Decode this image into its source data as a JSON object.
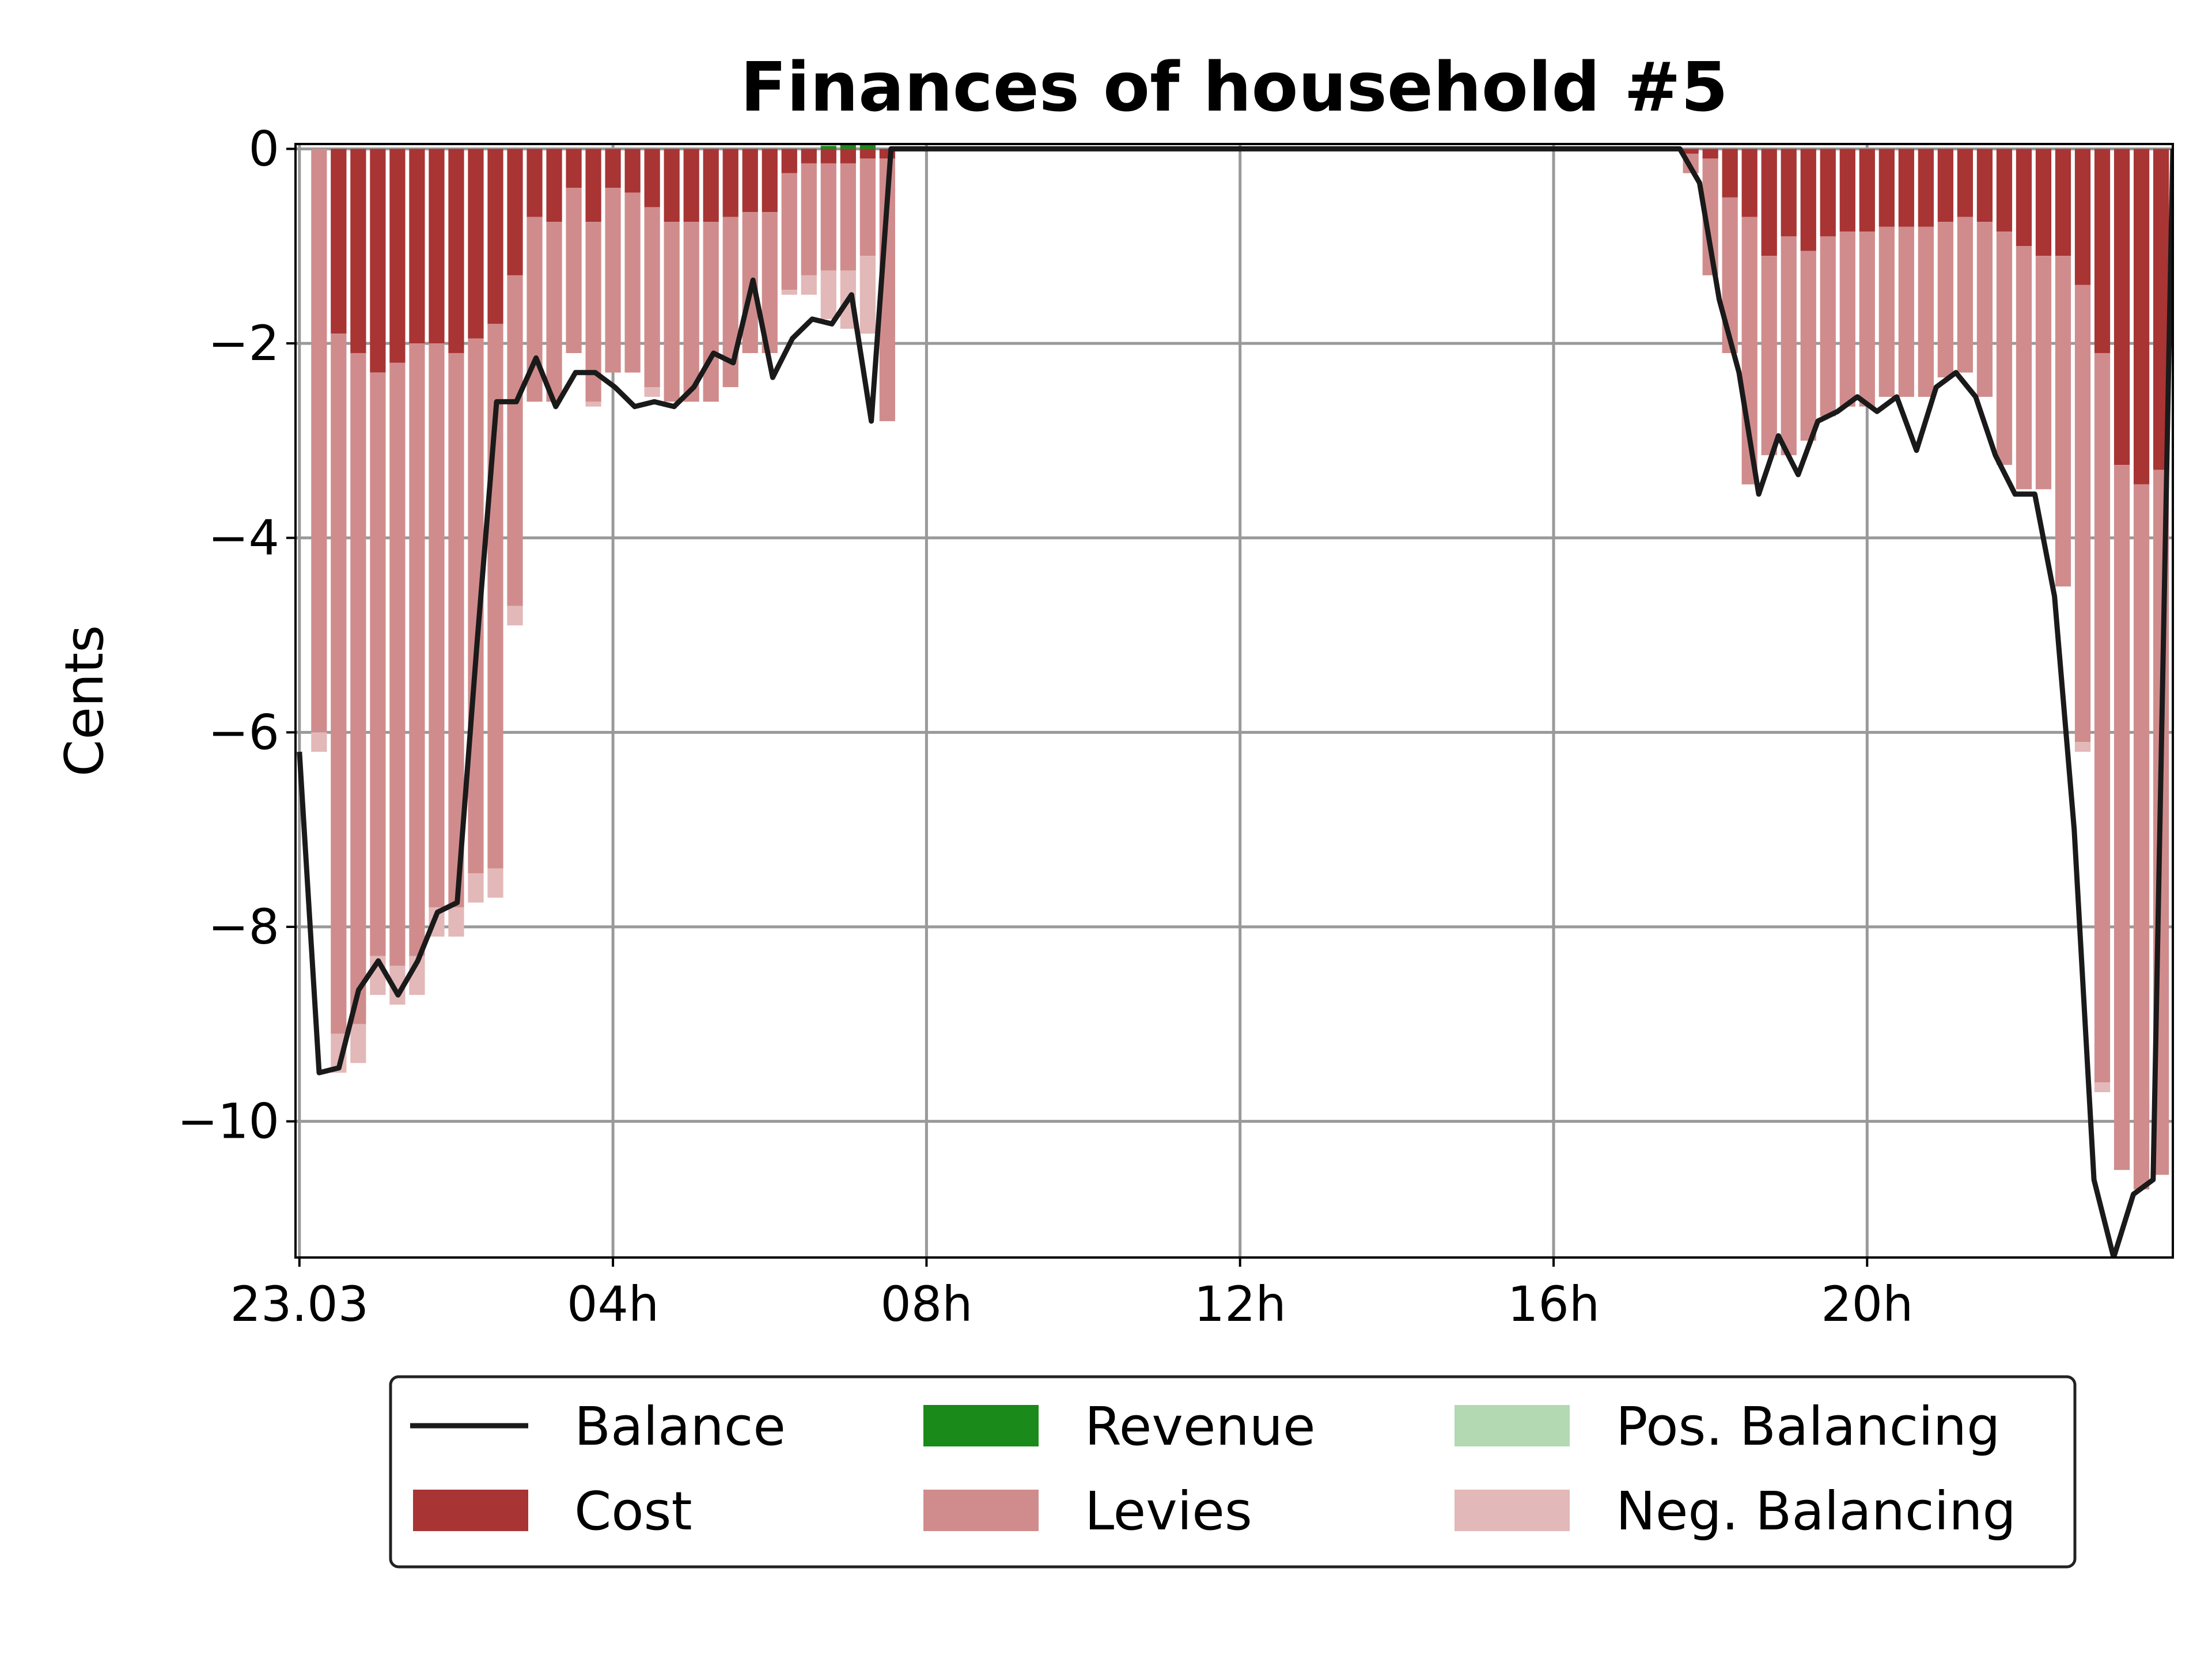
{
  "chart_data": {
    "type": "bar",
    "title": "Finances of household #5",
    "xlabel": "",
    "ylabel": "Cents",
    "ylim": [
      -11.4,
      0.05
    ],
    "yticks": [
      0,
      -2,
      -4,
      -6,
      -8,
      -10
    ],
    "ytick_labels": [
      "0",
      "−2",
      "−4",
      "−6",
      "−8",
      "−10"
    ],
    "xlim_hours": [
      -0.05,
      23.9
    ],
    "xticks_hours": [
      0,
      4,
      8,
      12,
      16,
      20
    ],
    "xtick_labels": [
      "23.03",
      "04h",
      "08h",
      "12h",
      "16h",
      "20h"
    ],
    "grid": true,
    "legend_position": "below",
    "colors": {
      "balance": "#1a1a1a",
      "revenue": "#1a8a1a",
      "pos_balancing": "#b3d9b3",
      "cost": "#a83434",
      "levies": "#d08c8c",
      "neg_balancing": "#e3b8b8",
      "grid": "#999999"
    },
    "legend": [
      {
        "key": "balance",
        "label": "Balance",
        "kind": "line"
      },
      {
        "key": "cost",
        "label": "Cost",
        "kind": "bar"
      },
      {
        "key": "revenue",
        "label": "Revenue",
        "kind": "bar"
      },
      {
        "key": "levies",
        "label": "Levies",
        "kind": "bar"
      },
      {
        "key": "pos_balancing",
        "label": "Pos. Balancing",
        "kind": "bar"
      },
      {
        "key": "neg_balancing",
        "label": "Neg. Balancing",
        "kind": "bar"
      }
    ],
    "interval_hours": 0.25,
    "cost": [
      0,
      -0.0,
      -1.9,
      -2.1,
      -2.3,
      -2.2,
      -2.0,
      -2.0,
      -2.1,
      -1.95,
      -1.8,
      -1.3,
      -0.7,
      -0.75,
      -0.4,
      -0.75,
      -0.4,
      -0.45,
      -0.6,
      -0.75,
      -0.75,
      -0.75,
      -0.7,
      -0.65,
      -0.65,
      -0.25,
      -0.15,
      -0.15,
      -0.15,
      -0.1,
      -0.1,
      0,
      0,
      0,
      0,
      0,
      0,
      0,
      0,
      0,
      0,
      0,
      0,
      0,
      0,
      0,
      0,
      0,
      0,
      0,
      0,
      0,
      0,
      0,
      0,
      0,
      0,
      0,
      0,
      0,
      0,
      0,
      0,
      0,
      0,
      0,
      0,
      0,
      0,
      0,
      0,
      -0.05,
      -0.1,
      -0.5,
      -0.7,
      -1.1,
      -0.9,
      -1.05,
      -0.9,
      -0.85,
      -0.85,
      -0.8,
      -0.8,
      -0.8,
      -0.75,
      -0.7,
      -0.75,
      -0.85,
      -1.0,
      -1.1,
      -1.1,
      -1.4,
      -2.1,
      -3.25,
      -3.45,
      -3.3,
      -3.25,
      0
    ],
    "levies": [
      0,
      -6.0,
      -7.2,
      -6.9,
      -6.0,
      -6.2,
      -6.3,
      -5.8,
      -5.7,
      -5.5,
      -5.6,
      -3.4,
      -1.9,
      -1.85,
      -1.7,
      -1.85,
      -1.9,
      -1.85,
      -1.85,
      -1.85,
      -1.85,
      -1.85,
      -1.75,
      -1.45,
      -1.45,
      -1.2,
      -1.15,
      -1.1,
      -1.1,
      -1.0,
      -2.7,
      0,
      0,
      0,
      0,
      0,
      0,
      0,
      0,
      0,
      0,
      0,
      0,
      0,
      0,
      0,
      0,
      0,
      0,
      0,
      0,
      0,
      0,
      0,
      0,
      0,
      0,
      0,
      0,
      0,
      0,
      0,
      0,
      0,
      0,
      0,
      0,
      0,
      0,
      0,
      0,
      -0.2,
      -1.2,
      -1.6,
      -2.75,
      -2.05,
      -2.25,
      -1.95,
      -1.85,
      -1.8,
      -1.8,
      -1.75,
      -1.75,
      -1.75,
      -1.6,
      -1.6,
      -1.8,
      -2.4,
      -2.5,
      -2.4,
      -3.4,
      -4.7,
      -7.5,
      -7.25,
      -7.25,
      -7.25,
      -7.2,
      0
    ],
    "neg_balancing": [
      0,
      -0.2,
      -0.4,
      -0.4,
      -0.4,
      -0.4,
      -0.4,
      -0.3,
      -0.3,
      -0.3,
      -0.3,
      -0.2,
      0,
      0,
      0,
      -0.05,
      0,
      0,
      -0.1,
      0,
      0,
      0,
      0,
      0,
      0,
      -0.05,
      -0.2,
      -0.5,
      -0.6,
      -0.8,
      0,
      0,
      0,
      0,
      0,
      0,
      0,
      0,
      0,
      0,
      0,
      0,
      0,
      0,
      0,
      0,
      0,
      0,
      0,
      0,
      0,
      0,
      0,
      0,
      0,
      0,
      0,
      0,
      0,
      0,
      0,
      0,
      0,
      0,
      0,
      0,
      0,
      0,
      0,
      0,
      0,
      0,
      0,
      0,
      0,
      0,
      0,
      0,
      0,
      0,
      0,
      0,
      0,
      0,
      0,
      0,
      0,
      0,
      0,
      0,
      0,
      -0.1,
      -0.1,
      0,
      0,
      0,
      0,
      0
    ],
    "revenue": [
      0,
      0,
      0,
      0,
      0,
      0,
      0,
      0,
      0,
      0,
      0,
      0,
      0,
      0,
      0,
      0,
      0,
      0,
      0,
      0,
      0,
      0,
      0,
      0,
      0,
      0,
      0,
      0.03,
      0.05,
      0.05,
      0,
      0,
      0,
      0,
      0,
      0,
      0,
      0,
      0,
      0,
      0,
      0,
      0,
      0,
      0,
      0,
      0,
      0,
      0,
      0,
      0,
      0,
      0,
      0,
      0,
      0,
      0,
      0,
      0,
      0,
      0,
      0,
      0,
      0,
      0,
      0,
      0,
      0,
      0,
      0,
      0,
      0,
      0,
      0,
      0,
      0,
      0,
      0,
      0,
      0,
      0,
      0,
      0,
      0,
      0,
      0,
      0,
      0,
      0,
      0,
      0,
      0,
      0,
      0,
      0,
      0,
      0,
      0
    ],
    "pos_balancing": [
      0,
      0,
      0,
      0,
      0,
      0,
      0,
      0,
      0,
      0,
      0,
      0,
      0,
      0,
      0,
      0,
      0,
      0,
      0,
      0,
      0,
      0,
      0,
      0,
      0,
      0,
      0,
      0.01,
      0.02,
      0.02,
      0,
      0,
      0,
      0,
      0,
      0,
      0,
      0,
      0,
      0,
      0,
      0,
      0,
      0,
      0,
      0,
      0,
      0,
      0,
      0,
      0,
      0,
      0,
      0,
      0,
      0,
      0,
      0,
      0,
      0,
      0,
      0,
      0,
      0,
      0,
      0,
      0,
      0,
      0,
      0,
      0,
      0,
      0,
      0,
      0,
      0,
      0,
      0,
      0,
      0,
      0,
      0,
      0,
      0,
      0,
      0,
      0,
      0,
      0,
      0,
      0,
      0,
      0,
      0,
      0,
      0,
      0,
      0
    ],
    "balance": [
      -6.2,
      -9.5,
      -9.45,
      -8.65,
      -8.35,
      -8.7,
      -8.35,
      -7.85,
      -7.75,
      -5.1,
      -2.6,
      -2.6,
      -2.15,
      -2.65,
      -2.3,
      -2.3,
      -2.45,
      -2.65,
      -2.6,
      -2.65,
      -2.45,
      -2.1,
      -2.2,
      -1.35,
      -2.35,
      -1.95,
      -1.75,
      -1.8,
      -1.5,
      -2.8,
      0,
      0,
      0,
      0,
      0,
      0,
      0,
      0,
      0,
      0,
      0,
      0,
      0,
      0,
      0,
      0,
      0,
      0,
      0,
      0,
      0,
      0,
      0,
      0,
      0,
      0,
      0,
      0,
      0,
      0,
      0,
      0,
      0,
      0,
      0,
      0,
      0,
      0,
      0,
      0,
      0,
      -0.35,
      -1.55,
      -2.3,
      -3.55,
      -2.95,
      -3.35,
      -2.8,
      -2.7,
      -2.55,
      -2.7,
      -2.55,
      -3.1,
      -2.45,
      -2.3,
      -2.55,
      -3.15,
      -3.55,
      -3.55,
      -4.6,
      -7.0,
      -10.6,
      -11.4,
      -10.75,
      -10.6,
      0
    ],
    "balance_first_hour": 0,
    "balance_last_hour": 23.9
  }
}
